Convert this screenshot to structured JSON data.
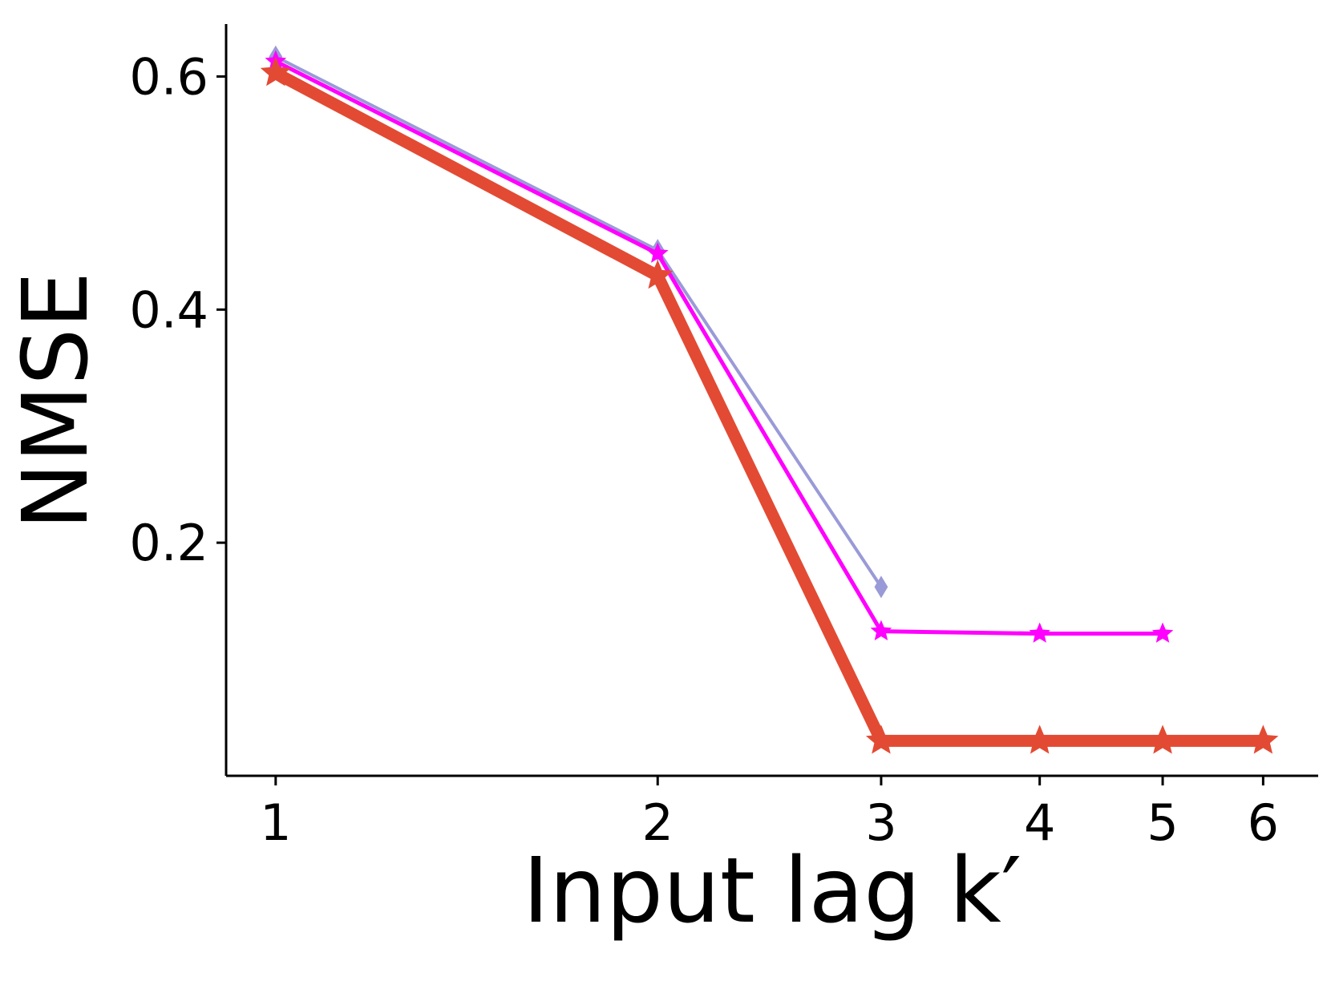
{
  "chart_data": {
    "type": "line",
    "x_label": "Input lag k′",
    "y_label": "NMSE",
    "xscale": "log",
    "x": [
      1,
      2,
      3,
      4,
      5,
      6
    ],
    "xlim": [
      0.914,
      6.63
    ],
    "xticks": [
      1,
      2,
      3,
      4,
      5,
      6
    ],
    "ylim": [
      0,
      0.645
    ],
    "yticks": [
      0.2,
      0.4,
      0.6
    ],
    "series": [
      {
        "color": "#9a9ad8",
        "marker": "diamond",
        "width": 4,
        "values": [
          0.617,
          0.451,
          0.162,
          null,
          null,
          null
        ]
      },
      {
        "color": "#ff00ff",
        "marker": "star",
        "width": 5,
        "values": [
          0.613,
          0.448,
          0.124,
          0.122,
          0.122,
          null
        ]
      },
      {
        "color": "#e34a33",
        "marker": "star",
        "width": 15,
        "values": [
          0.603,
          0.429,
          0.03,
          0.03,
          0.03,
          0.03
        ]
      }
    ]
  }
}
